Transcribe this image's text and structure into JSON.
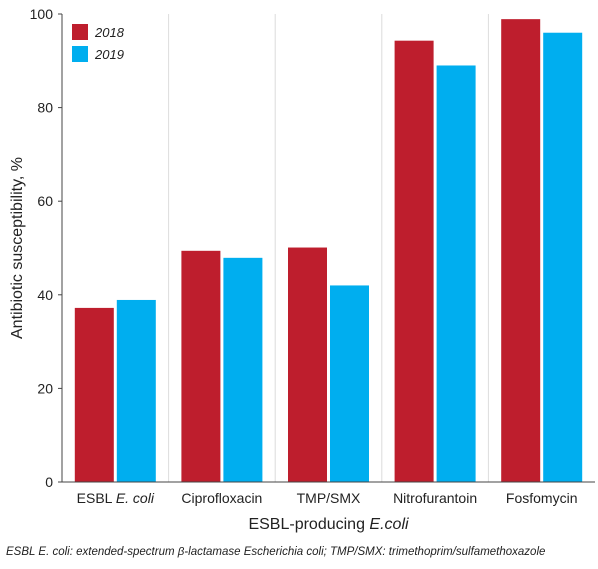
{
  "chart_data": {
    "type": "bar",
    "categories": [
      "ESBL E. coli",
      "Ciprofloxacin",
      "TMP/SMX",
      "Nitrofurantoin",
      "Fosfomycin"
    ],
    "series": [
      {
        "name": "2018",
        "values": [
          37.2,
          49.4,
          50.1,
          94.3,
          98.9
        ]
      },
      {
        "name": "2019",
        "values": [
          38.9,
          47.9,
          42.0,
          89.0,
          96.0
        ]
      }
    ],
    "colors": [
      "#be1e2d",
      "#00aeef"
    ],
    "xlabel_prefix": "ESBL-producing ",
    "xlabel_italic": "E.coli",
    "ylabel": "Antibiotic susceptibility, %",
    "ylim": [
      0,
      100
    ],
    "yticks": [
      0,
      20,
      40,
      60,
      80,
      100
    ],
    "grid": "vertical-separators",
    "legend": "top-left"
  },
  "footnote": "ESBL E. coli: extended-spectrum β-lactamase Escherichia coli; TMP/SMX: trimethoprim/sulfamethoxazole"
}
